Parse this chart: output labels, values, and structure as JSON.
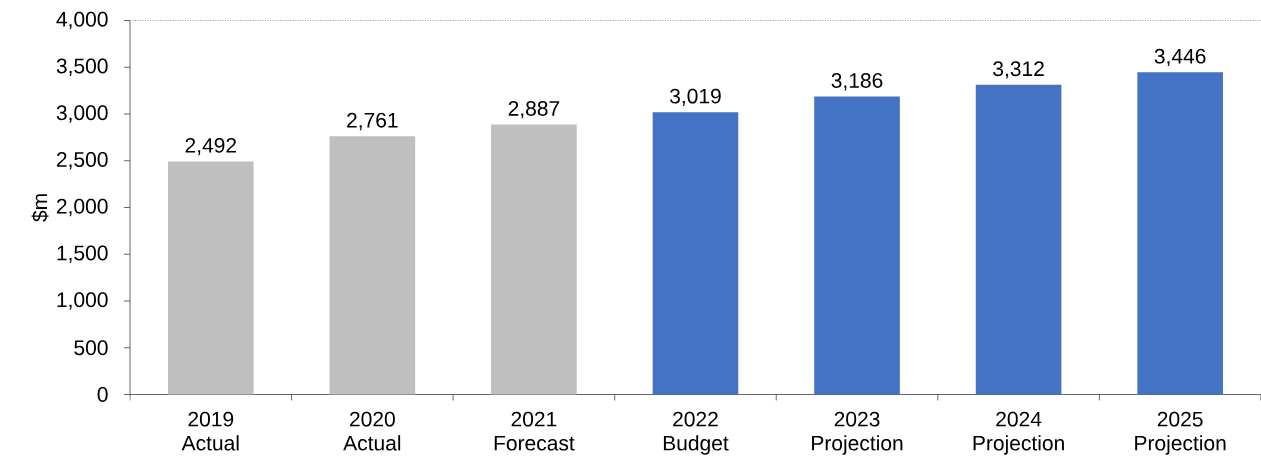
{
  "chart_data": {
    "type": "bar",
    "ylabel": "$m",
    "categories": [
      "2019 Actual",
      "2020 Actual",
      "2021 Forecast",
      "2022 Budget",
      "2023 Projection",
      "2024 Projection",
      "2025 Projection"
    ],
    "values": [
      2492,
      2761,
      2887,
      3019,
      3186,
      3312,
      3446
    ],
    "colors": [
      "#bfbfbf",
      "#bfbfbf",
      "#bfbfbf",
      "#4472c4",
      "#4472c4",
      "#4472c4",
      "#4472c4"
    ],
    "value_labels": [
      "2,492",
      "2,761",
      "2,887",
      "3,019",
      "3,186",
      "3,312",
      "3,446"
    ],
    "ylim": [
      0,
      4000
    ],
    "yticks": [
      0,
      500,
      {
        "value": 1000,
        "label": "1,000"
      },
      {
        "value": 1500,
        "label": "1,500"
      },
      {
        "value": 2000,
        "label": "2,000"
      },
      {
        "value": 2500,
        "label": "2,500"
      },
      {
        "value": 3000,
        "label": "3,000"
      },
      {
        "value": 3500,
        "label": "3,500"
      },
      {
        "value": 4000,
        "label": "4,000"
      }
    ]
  }
}
